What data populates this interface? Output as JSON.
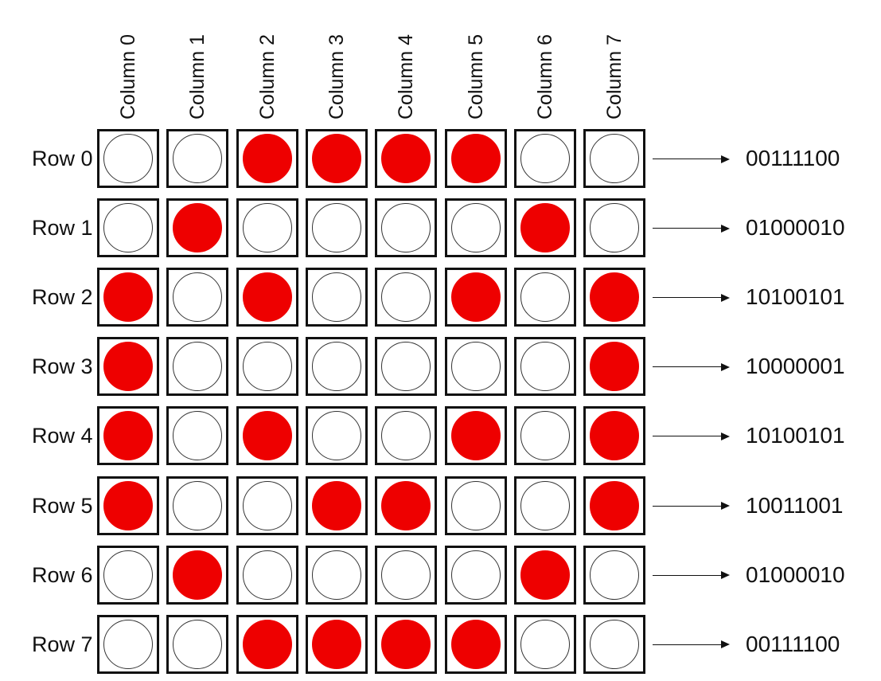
{
  "matrix": {
    "on_color": "#ee0000",
    "off_color": "#ffffff",
    "column_labels": [
      "Column 0",
      "Column 1",
      "Column 2",
      "Column 3",
      "Column 4",
      "Column 5",
      "Column 6",
      "Column 7"
    ],
    "rows": [
      {
        "label": "Row 0",
        "binary": "00111100",
        "cells": [
          0,
          0,
          1,
          1,
          1,
          1,
          0,
          0
        ]
      },
      {
        "label": "Row 1",
        "binary": "01000010",
        "cells": [
          0,
          1,
          0,
          0,
          0,
          0,
          1,
          0
        ]
      },
      {
        "label": "Row 2",
        "binary": "10100101",
        "cells": [
          1,
          0,
          1,
          0,
          0,
          1,
          0,
          1
        ]
      },
      {
        "label": "Row 3",
        "binary": "10000001",
        "cells": [
          1,
          0,
          0,
          0,
          0,
          0,
          0,
          1
        ]
      },
      {
        "label": "Row 4",
        "binary": "10100101",
        "cells": [
          1,
          0,
          1,
          0,
          0,
          1,
          0,
          1
        ]
      },
      {
        "label": "Row 5",
        "binary": "10011001",
        "cells": [
          1,
          0,
          0,
          1,
          1,
          0,
          0,
          1
        ]
      },
      {
        "label": "Row 6",
        "binary": "01000010",
        "cells": [
          0,
          1,
          0,
          0,
          0,
          0,
          1,
          0
        ]
      },
      {
        "label": "Row 7",
        "binary": "00111100",
        "cells": [
          0,
          0,
          1,
          1,
          1,
          1,
          0,
          0
        ]
      }
    ]
  }
}
